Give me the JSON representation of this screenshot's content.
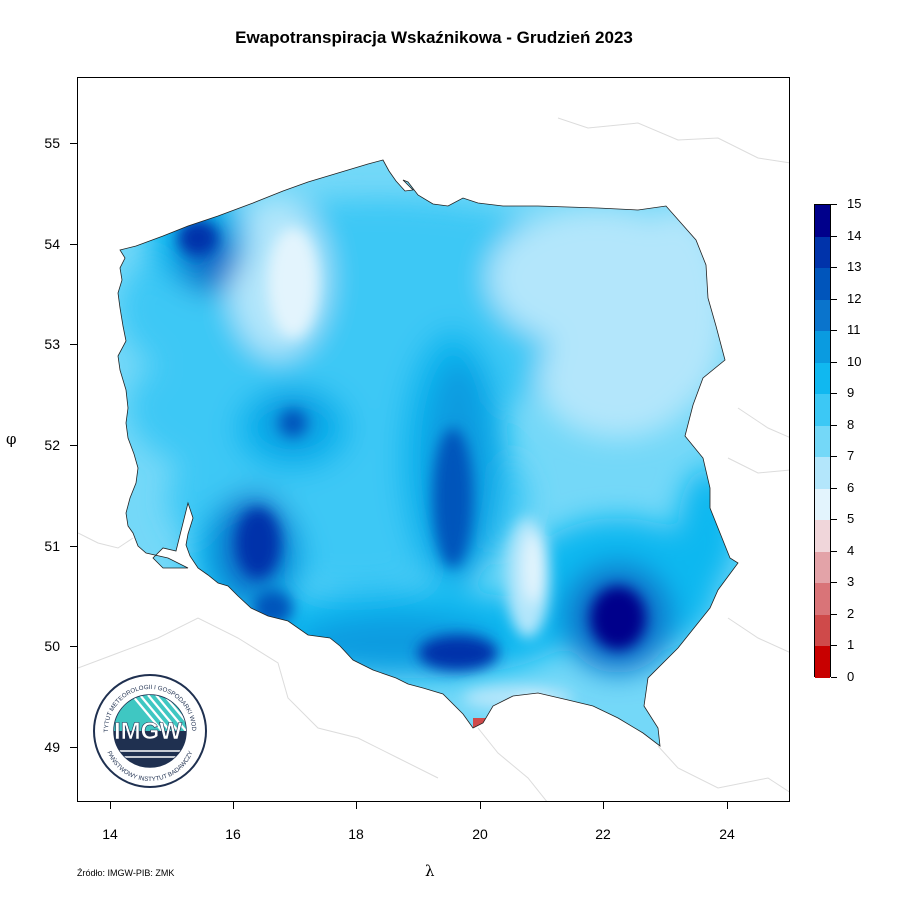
{
  "title": "Ewapotranspiracja Wskaźnikowa - Grudzień 2023",
  "x_axis_symbol": "λ",
  "y_axis_symbol": "φ",
  "x_ticks": [
    "14",
    "16",
    "18",
    "20",
    "22",
    "24"
  ],
  "y_ticks": [
    "55",
    "54",
    "53",
    "52",
    "51",
    "50",
    "49"
  ],
  "source": "Źródło: IMGW-PIB: ZMK",
  "legend": {
    "labels": [
      "15",
      "14",
      "13",
      "12",
      "11",
      "10",
      "9",
      "8",
      "7",
      "6",
      "5",
      "4",
      "3",
      "2",
      "1",
      "0"
    ],
    "colors": [
      "#00008b",
      "#0033aa",
      "#0055bb",
      "#0a74cc",
      "#0a9be0",
      "#10b8f0",
      "#3cc8f5",
      "#74d8f8",
      "#b3e6fb",
      "#e3f4fd",
      "#f0d6da",
      "#e3a3a8",
      "#d97478",
      "#cf4a4a",
      "#c80000"
    ]
  },
  "logo": {
    "abbreviation": "IMGW",
    "ring_text_top": "INSTYTUT METEOROLOGII I GOSPODARKI WODNEJ",
    "ring_text_bottom": "PAŃSTWOWY INSTYTUT BADAWCZY",
    "colors": {
      "navy": "#1f3050",
      "teal": "#3fc7c2"
    }
  }
}
